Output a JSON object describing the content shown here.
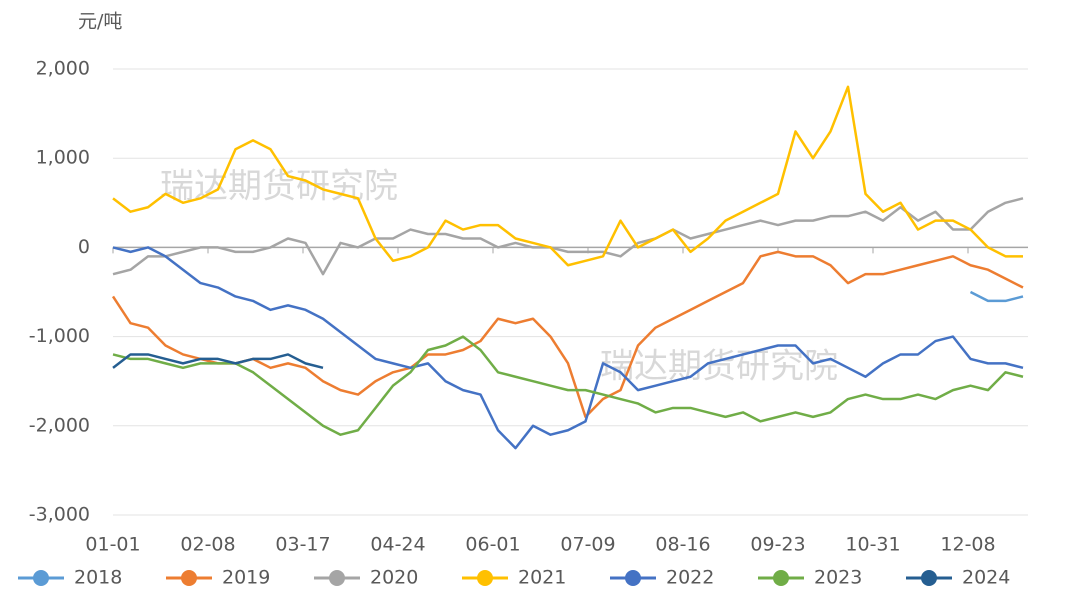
{
  "chart_data": {
    "type": "line",
    "y_unit": "元/吨",
    "watermarks": [
      "瑞达期货研究院",
      "瑞达期货研究院"
    ],
    "x": [
      0,
      7,
      14,
      21,
      28,
      35,
      42,
      49,
      56,
      63,
      70,
      77,
      84,
      91,
      98,
      105,
      112,
      119,
      126,
      133,
      140,
      147,
      154,
      161,
      168,
      175,
      182,
      189,
      196,
      203,
      210,
      217,
      224,
      231,
      238,
      245,
      252,
      259,
      266,
      273,
      280,
      287,
      294,
      301,
      308,
      315,
      322,
      329,
      336,
      343,
      350,
      357,
      364
    ],
    "xlim": [
      0,
      366
    ],
    "xticks": [
      {
        "value": 0,
        "label": "01-01"
      },
      {
        "value": 38,
        "label": "02-08"
      },
      {
        "value": 76,
        "label": "03-17"
      },
      {
        "value": 114,
        "label": "04-24"
      },
      {
        "value": 152,
        "label": "06-01"
      },
      {
        "value": 190,
        "label": "07-09"
      },
      {
        "value": 228,
        "label": "08-16"
      },
      {
        "value": 266,
        "label": "09-23"
      },
      {
        "value": 304,
        "label": "10-31"
      },
      {
        "value": 342,
        "label": "12-08"
      }
    ],
    "ylim": [
      -3000,
      2000
    ],
    "yticks": [
      {
        "value": -3000,
        "label": "-3,000"
      },
      {
        "value": -2000,
        "label": "-2,000"
      },
      {
        "value": -1000,
        "label": "-1,000"
      },
      0,
      {
        "value": 1000,
        "label": "1,000"
      },
      {
        "value": 2000,
        "label": "2,000"
      }
    ],
    "grid": true,
    "series": [
      {
        "name": "2018",
        "color": "#5b9bd5",
        "values": [
          null,
          null,
          null,
          null,
          null,
          null,
          null,
          null,
          null,
          null,
          null,
          null,
          null,
          null,
          null,
          null,
          null,
          null,
          null,
          null,
          null,
          null,
          null,
          null,
          null,
          null,
          null,
          null,
          null,
          null,
          null,
          null,
          null,
          null,
          null,
          null,
          null,
          null,
          null,
          null,
          null,
          null,
          null,
          null,
          null,
          null,
          null,
          null,
          null,
          -500,
          -600,
          -600,
          -550
        ]
      },
      {
        "name": "2019",
        "color": "#ed7d31",
        "values": [
          -550,
          -850,
          -900,
          -1100,
          -1200,
          -1250,
          -1300,
          -1300,
          -1250,
          -1350,
          -1300,
          -1350,
          -1500,
          -1600,
          -1650,
          -1500,
          -1400,
          -1350,
          -1200,
          -1200,
          -1150,
          -1050,
          -800,
          -850,
          -800,
          -1000,
          -1300,
          -1900,
          -1700,
          -1600,
          -1100,
          -900,
          -800,
          -700,
          -600,
          -500,
          -400,
          -100,
          -50,
          -100,
          -100,
          -200,
          -400,
          -300,
          -300,
          -250,
          -200,
          -150,
          -100,
          -200,
          -250,
          -350,
          -450
        ]
      },
      {
        "name": "2020",
        "color": "#a5a5a5",
        "values": [
          -300,
          -250,
          -100,
          -100,
          -50,
          0,
          0,
          -50,
          -50,
          0,
          100,
          50,
          -300,
          50,
          0,
          100,
          100,
          200,
          150,
          150,
          100,
          100,
          0,
          50,
          0,
          0,
          -50,
          -50,
          -50,
          -100,
          50,
          100,
          200,
          100,
          150,
          200,
          250,
          300,
          250,
          300,
          300,
          350,
          350,
          400,
          300,
          450,
          300,
          400,
          200,
          200,
          400,
          500,
          550
        ]
      },
      {
        "name": "2021",
        "color": "#ffc000",
        "values": [
          550,
          400,
          450,
          600,
          500,
          550,
          650,
          1100,
          1200,
          1100,
          800,
          750,
          650,
          600,
          550,
          100,
          -150,
          -100,
          0,
          300,
          200,
          250,
          250,
          100,
          50,
          0,
          -200,
          -150,
          -100,
          300,
          0,
          100,
          200,
          -50,
          100,
          300,
          400,
          500,
          600,
          1300,
          1000,
          1300,
          1800,
          600,
          400,
          500,
          200,
          300,
          300,
          200,
          0,
          -100,
          -100
        ]
      },
      {
        "name": "2022",
        "color": "#4472c4",
        "values": [
          0,
          -50,
          0,
          -100,
          -250,
          -400,
          -450,
          -550,
          -600,
          -700,
          -650,
          -700,
          -800,
          -950,
          -1100,
          -1250,
          -1300,
          -1350,
          -1300,
          -1500,
          -1600,
          -1650,
          -2050,
          -2250,
          -2000,
          -2100,
          -2050,
          -1950,
          -1300,
          -1400,
          -1600,
          -1550,
          -1500,
          -1450,
          -1300,
          -1250,
          -1200,
          -1150,
          -1100,
          -1100,
          -1300,
          -1250,
          -1350,
          -1450,
          -1300,
          -1200,
          -1200,
          -1050,
          -1000,
          -1250,
          -1300,
          -1300,
          -1350
        ]
      },
      {
        "name": "2023",
        "color": "#70ad47",
        "values": [
          -1200,
          -1250,
          -1250,
          -1300,
          -1350,
          -1300,
          -1300,
          -1300,
          -1400,
          -1550,
          -1700,
          -1850,
          -2000,
          -2100,
          -2050,
          -1800,
          -1550,
          -1400,
          -1150,
          -1100,
          -1000,
          -1150,
          -1400,
          -1450,
          -1500,
          -1550,
          -1600,
          -1600,
          -1650,
          -1700,
          -1750,
          -1850,
          -1800,
          -1800,
          -1850,
          -1900,
          -1850,
          -1950,
          -1900,
          -1850,
          -1900,
          -1850,
          -1700,
          -1650,
          -1700,
          -1700,
          -1650,
          -1700,
          -1600,
          -1550,
          -1600,
          -1400,
          -1450
        ]
      },
      {
        "name": "2024",
        "color": "#255e91",
        "values": [
          -1350,
          -1200,
          -1200,
          -1250,
          -1300,
          -1250,
          -1250,
          -1300,
          -1250,
          -1250,
          -1200,
          -1300,
          -1350,
          null,
          null,
          null,
          null,
          null,
          null,
          null,
          null,
          null,
          null,
          null,
          null,
          null,
          null,
          null,
          null,
          null,
          null,
          null,
          null,
          null,
          null,
          null,
          null,
          null,
          null,
          null,
          null,
          null,
          null,
          null,
          null,
          null,
          null,
          null,
          null,
          null,
          null,
          null,
          null
        ]
      }
    ]
  }
}
